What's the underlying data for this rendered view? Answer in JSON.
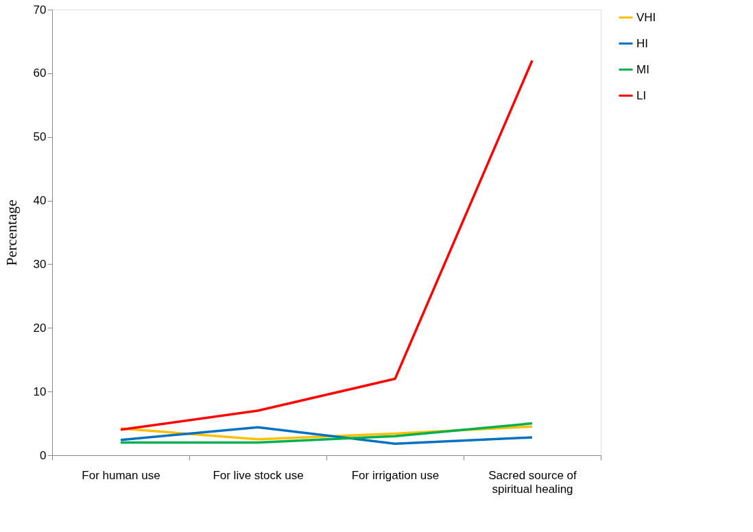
{
  "chart_data": {
    "type": "line",
    "ylabel": "Percentage",
    "categories": [
      "For human use",
      "For live stock use",
      "For irrigation use",
      "Sacred source of\nspiritual healing"
    ],
    "series": [
      {
        "name": "VHI",
        "color": "#ffc000",
        "values": [
          4.2,
          2.5,
          3.4,
          4.5
        ]
      },
      {
        "name": "HI",
        "color": "#0070c0",
        "values": [
          2.4,
          4.4,
          1.8,
          2.8
        ]
      },
      {
        "name": "MI",
        "color": "#00b050",
        "values": [
          2,
          2,
          3,
          5
        ]
      },
      {
        "name": "LI",
        "color": "#ff0000",
        "values": [
          4,
          7,
          12,
          62
        ]
      }
    ],
    "ylim": [
      0,
      70
    ],
    "yticks": [
      0,
      10,
      20,
      30,
      40,
      50,
      60,
      70
    ],
    "grid": false,
    "legend": "right",
    "marker": "none",
    "line_style": "solid"
  }
}
